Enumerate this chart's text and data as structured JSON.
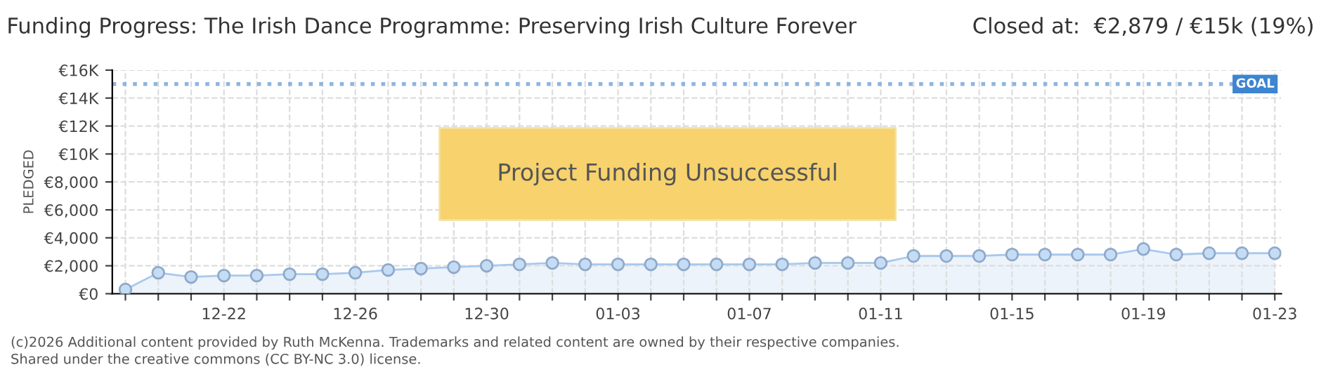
{
  "chart_data": {
    "type": "area",
    "title": "Funding Progress: The Irish Dance Programme: Preserving Irish Culture Forever",
    "subtitle": "Closed at:  €2,879 / €15k (19%)",
    "ylabel": "PLEDGED",
    "categories": [
      null,
      null,
      null,
      "12-22",
      null,
      null,
      null,
      "12-26",
      null,
      null,
      null,
      "12-30",
      null,
      null,
      null,
      "01-03",
      null,
      null,
      null,
      "01-07",
      null,
      null,
      null,
      "01-11",
      null,
      null,
      null,
      "01-15",
      null,
      null,
      null,
      "01-19",
      null,
      null,
      null,
      "01-23"
    ],
    "series": [
      {
        "color": "#a9c8ec",
        "values": [
          300,
          1500,
          1200,
          1300,
          1300,
          1400,
          1400,
          1500,
          1700,
          1800,
          1900,
          2000,
          2100,
          2200,
          2100,
          2100,
          2100,
          2100,
          2100,
          2100,
          2100,
          2200,
          2200,
          2200,
          2700,
          2700,
          2700,
          2800,
          2800,
          2800,
          2800,
          3200,
          2800,
          2900,
          2900,
          2900
        ]
      }
    ],
    "ylim": [
      0,
      16000
    ],
    "yticks": [
      {
        "value": 0,
        "label": "€0"
      },
      {
        "value": 2000,
        "label": "€2,000"
      },
      {
        "value": 4000,
        "label": "€4,000"
      },
      {
        "value": 6000,
        "label": "€6,000"
      },
      {
        "value": 8000,
        "label": "€8,000"
      },
      {
        "value": 10000,
        "label": "€10K"
      },
      {
        "value": 12000,
        "label": "€12K"
      },
      {
        "value": 14000,
        "label": "€14K"
      },
      {
        "value": 16000,
        "label": "€16K"
      }
    ],
    "ref_lines": [
      {
        "axis": "y",
        "value": 15000,
        "label": "GOAL",
        "color": "#8fb4e0",
        "line_style": "dotted"
      }
    ],
    "annotations": [
      "Project Funding Unsuccessful",
      "(c)2026 Additional content provided by Ruth McKenna. Trademarks and related content are owned by their respective companies.",
      "Shared under the creative commons (CC BY-NC 3.0) license."
    ],
    "grid": true,
    "marker": "circle",
    "line_style": "solid"
  }
}
